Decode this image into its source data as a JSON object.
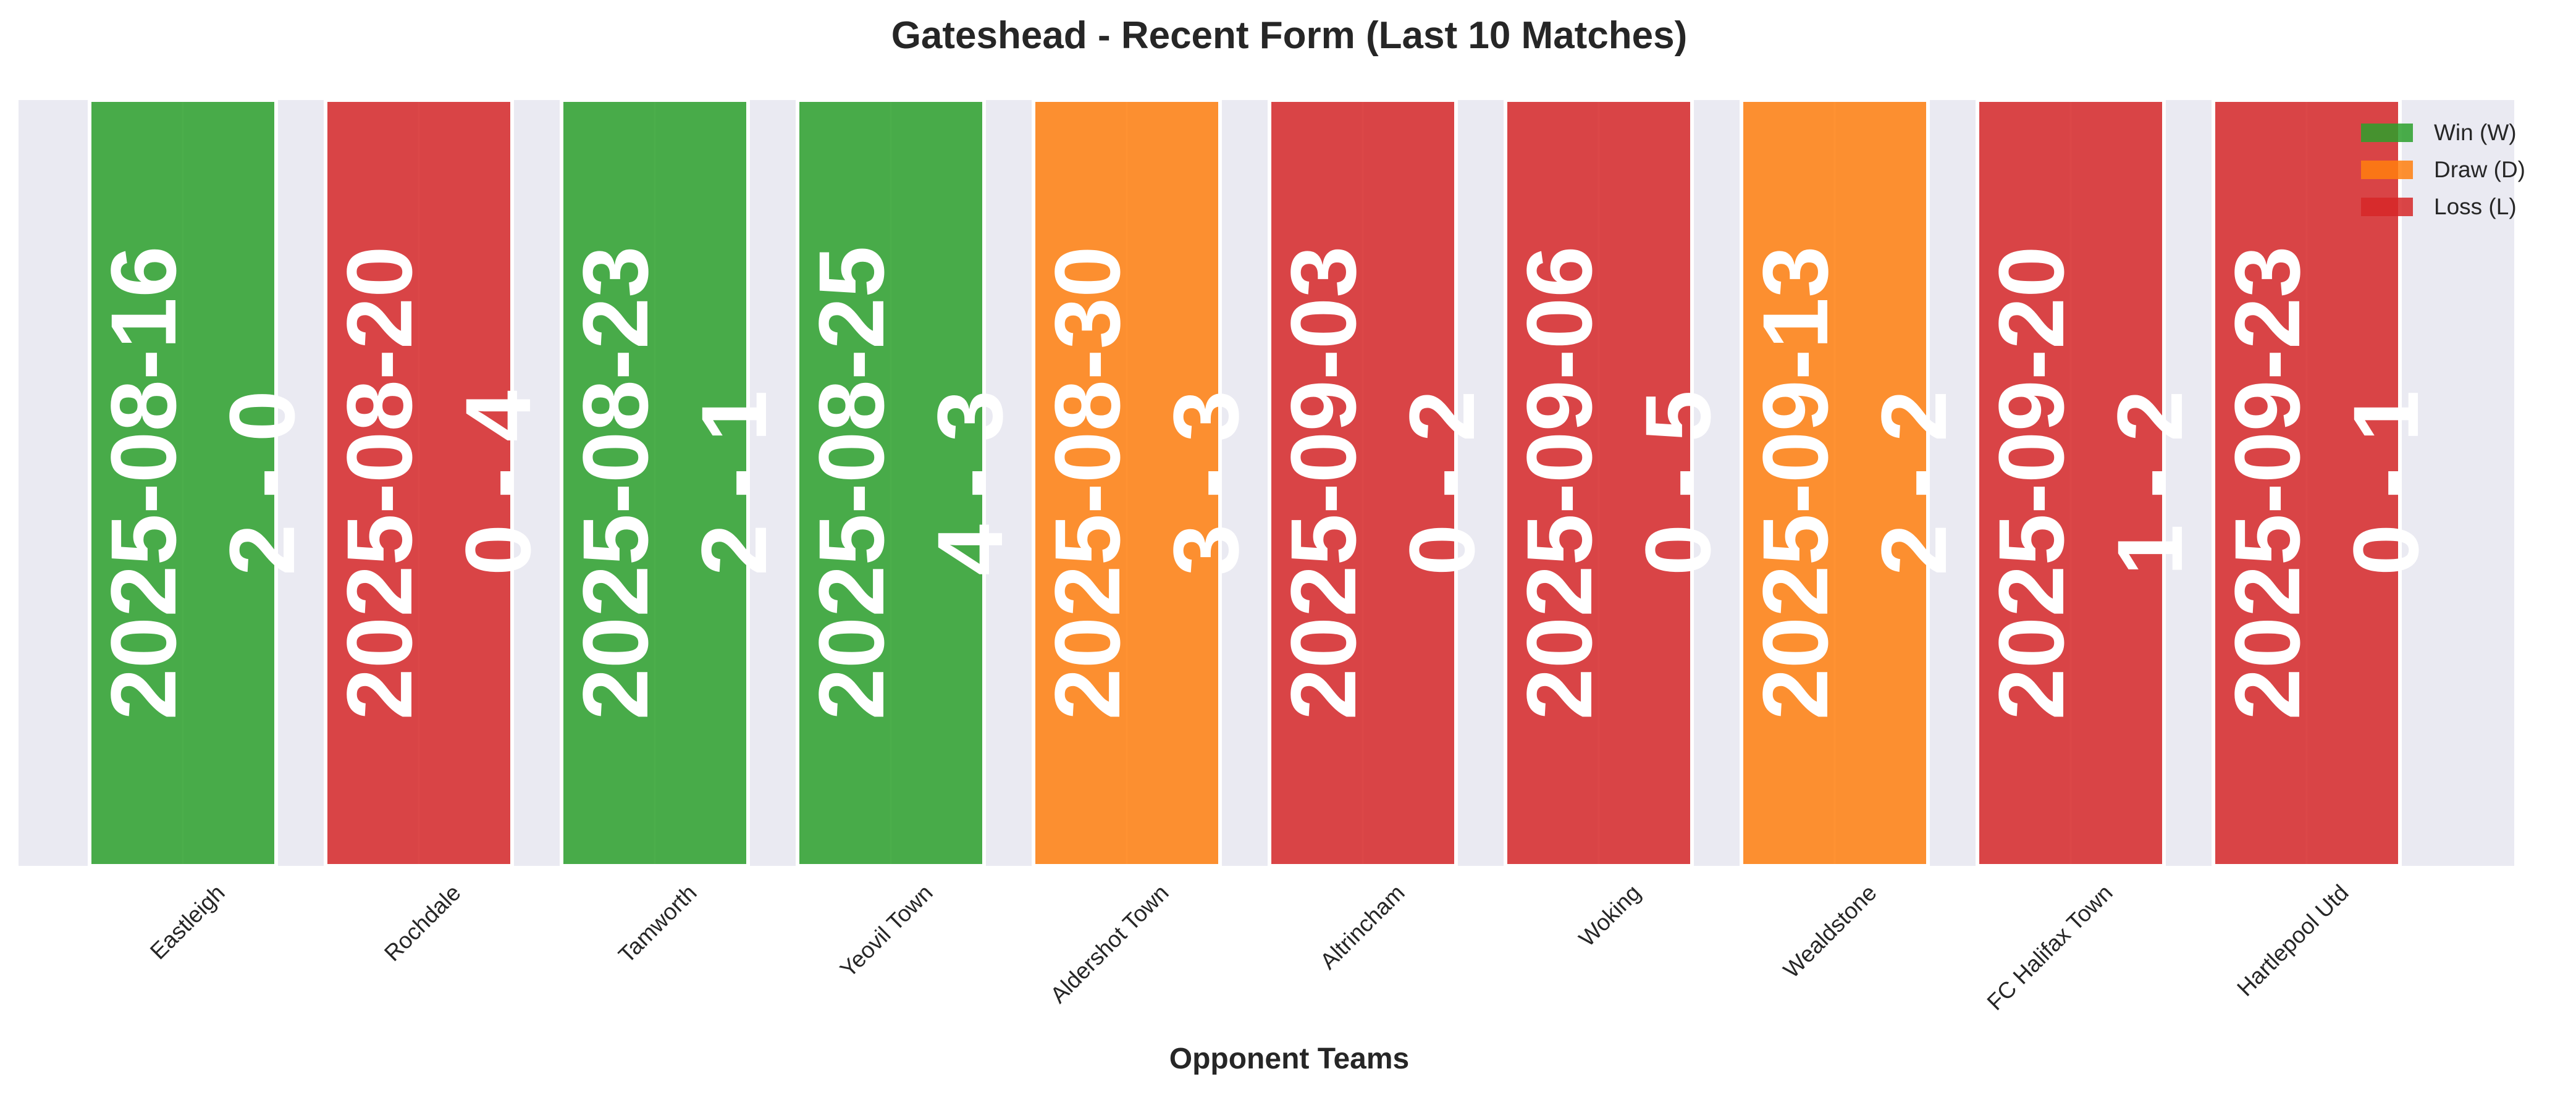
{
  "chart_data": {
    "type": "bar",
    "title": "Gateshead - Recent Form (Last 10 Matches)",
    "xlabel": "Opponent Teams",
    "ylabel": "",
    "ylim": [
      0,
      1
    ],
    "grid": true,
    "legend_position": "top-right",
    "categories": [
      "Eastleigh",
      "Rochdale",
      "Tamworth",
      "Yeovil Town",
      "Aldershot Town",
      "Altrincham",
      "Woking",
      "Wealdstone",
      "FC Halifax Town",
      "Hartlepool Utd"
    ],
    "matches": [
      {
        "opponent": "Eastleigh",
        "date": "2025-08-16",
        "score": "2 - 0",
        "result": "W",
        "value": 1
      },
      {
        "opponent": "Rochdale",
        "date": "2025-08-20",
        "score": "0 - 4",
        "result": "L",
        "value": 1
      },
      {
        "opponent": "Tamworth",
        "date": "2025-08-23",
        "score": "2 - 1",
        "result": "W",
        "value": 1
      },
      {
        "opponent": "Yeovil Town",
        "date": "2025-08-25",
        "score": "4 - 3",
        "result": "W",
        "value": 1
      },
      {
        "opponent": "Aldershot Town",
        "date": "2025-08-30",
        "score": "3 - 3",
        "result": "D",
        "value": 1
      },
      {
        "opponent": "Altrincham",
        "date": "2025-09-03",
        "score": "0 - 2",
        "result": "L",
        "value": 1
      },
      {
        "opponent": "Woking",
        "date": "2025-09-06",
        "score": "0 - 5",
        "result": "L",
        "value": 1
      },
      {
        "opponent": "Wealdstone",
        "date": "2025-09-13",
        "score": "2 - 2",
        "result": "D",
        "value": 1
      },
      {
        "opponent": "FC Halifax Town",
        "date": "2025-09-20",
        "score": "1 - 2",
        "result": "L",
        "value": 1
      },
      {
        "opponent": "Hartlepool Utd",
        "date": "2025-09-23",
        "score": "0 - 1",
        "result": "L",
        "value": 1
      }
    ],
    "legend": [
      {
        "key": "W",
        "label": "Win (W)",
        "color": "#2ca02c"
      },
      {
        "key": "D",
        "label": "Draw (D)",
        "color": "#ff7f0e"
      },
      {
        "key": "L",
        "label": "Loss (L)",
        "color": "#d62728"
      }
    ],
    "colors": {
      "W": "#2ca02c",
      "D": "#ff7f0e",
      "L": "#d62728",
      "plot_background": "#eaeaf2"
    }
  }
}
